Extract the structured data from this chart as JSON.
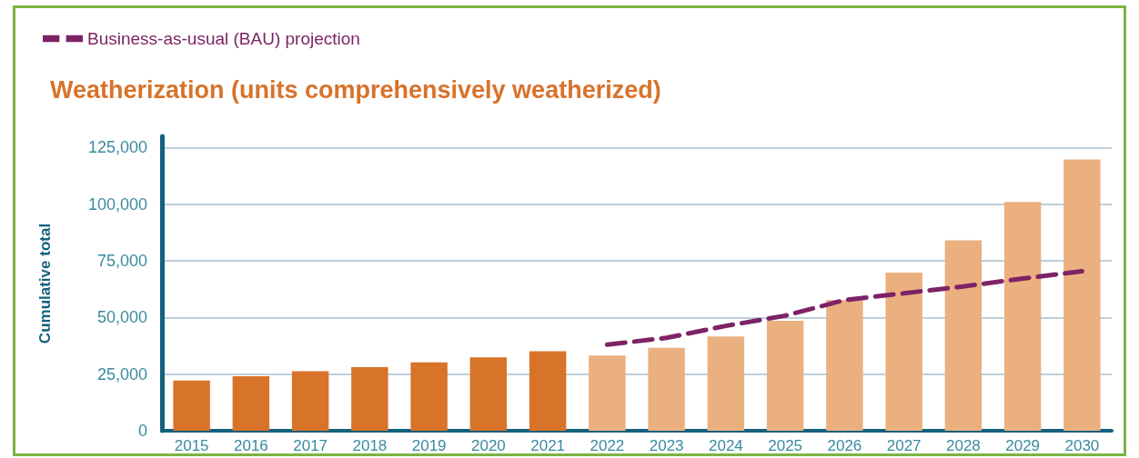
{
  "chart_data": {
    "type": "bar",
    "title": "Weatherization (units comprehensively weatherized)",
    "ylabel": "Cumulative total",
    "categories": [
      "2015",
      "2016",
      "2017",
      "2018",
      "2019",
      "2020",
      "2021",
      "2022",
      "2023",
      "2024",
      "2025",
      "2026",
      "2027",
      "2028",
      "2029",
      "2030"
    ],
    "series": [
      {
        "colors": [
          "#d8732a",
          "#d8732a",
          "#d8732a",
          "#d8732a",
          "#d8732a",
          "#d8732a",
          "#d8732a",
          "#ebb07f",
          "#ebb07f",
          "#ebb07f",
          "#ebb07f",
          "#ebb07f",
          "#ebb07f",
          "#ebb07f",
          "#ebb07f",
          "#ebb07f"
        ],
        "values": [
          22200,
          24100,
          26300,
          28100,
          30200,
          32400,
          35100,
          33200,
          36600,
          41600,
          48500,
          57700,
          69800,
          84100,
          101000,
          119800
        ]
      },
      {
        "type": "line",
        "name": "Business-as-usual (BAU) projection",
        "color": "#7d2365",
        "line_style": "dashed",
        "marker": "none",
        "values": [
          null,
          null,
          null,
          null,
          null,
          null,
          null,
          38000,
          41000,
          46300,
          50800,
          57700,
          60700,
          63700,
          67200,
          70400
        ]
      }
    ],
    "ylim": [
      0,
      130000
    ],
    "yticks": [
      0,
      {
        "value": 25000,
        "label": "25,000"
      },
      {
        "value": 50000,
        "label": "50,000"
      },
      {
        "value": 75000,
        "label": "75,000"
      },
      {
        "value": 100000,
        "label": "100,000"
      },
      {
        "value": 125000,
        "label": "125,000"
      }
    ],
    "grid": "y",
    "legend": "top left"
  }
}
